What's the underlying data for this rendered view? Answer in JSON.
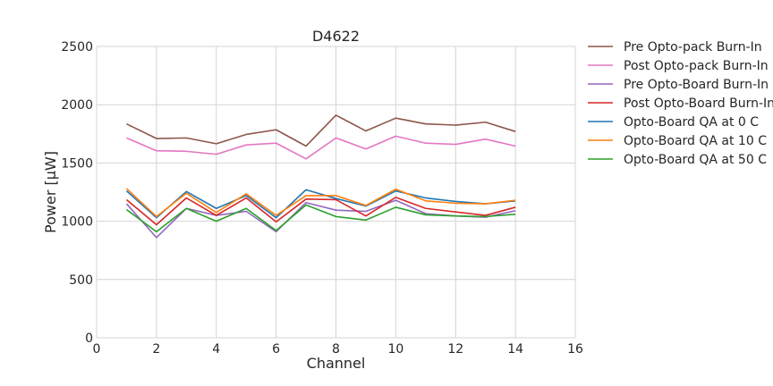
{
  "chart_data": {
    "type": "line",
    "title": "D4622",
    "xlabel": "Channel",
    "ylabel": "Power [μW]",
    "xlim": [
      0,
      16
    ],
    "ylim": [
      0,
      2500
    ],
    "xticks": [
      0,
      2,
      4,
      6,
      8,
      10,
      12,
      14,
      16
    ],
    "yticks": [
      0,
      500,
      1000,
      1500,
      2000,
      2500
    ],
    "grid": true,
    "legend_position": "outside-right",
    "x": [
      1,
      2,
      3,
      4,
      5,
      6,
      7,
      8,
      9,
      10,
      11,
      12,
      13,
      14
    ],
    "series": [
      {
        "name": "Pre Opto-pack Burn-In",
        "color": "#8c564b",
        "values": [
          1835,
          1710,
          1715,
          1665,
          1745,
          1785,
          1645,
          1910,
          1775,
          1885,
          1835,
          1825,
          1850,
          1770
        ]
      },
      {
        "name": "Post Opto-pack Burn-In",
        "color": "#e377c2",
        "values": [
          1715,
          1605,
          1600,
          1575,
          1655,
          1670,
          1535,
          1715,
          1620,
          1730,
          1670,
          1660,
          1705,
          1645
        ]
      },
      {
        "name": "Pre Opto-Board Burn-In",
        "color": "#9467bd",
        "values": [
          1150,
          860,
          1110,
          1050,
          1085,
          910,
          1160,
          1095,
          1085,
          1180,
          1065,
          1045,
          1035,
          1090
        ]
      },
      {
        "name": "Post Opto-Board Burn-In",
        "color": "#d62728",
        "values": [
          1185,
          970,
          1200,
          1050,
          1200,
          995,
          1190,
          1185,
          1045,
          1205,
          1110,
          1080,
          1050,
          1120
        ]
      },
      {
        "name": "Opto-Board QA at 0 C",
        "color": "#1f77b4",
        "values": [
          1260,
          1030,
          1255,
          1110,
          1220,
          1030,
          1270,
          1195,
          1130,
          1260,
          1200,
          1170,
          1150,
          1175
        ]
      },
      {
        "name": "Opto-Board QA at 10 C",
        "color": "#ff7f0e",
        "values": [
          1280,
          1040,
          1240,
          1075,
          1235,
          1050,
          1220,
          1220,
          1135,
          1275,
          1175,
          1155,
          1150,
          1180
        ]
      },
      {
        "name": "Opto-Board QA at 50 C",
        "color": "#2ca02c",
        "values": [
          1100,
          910,
          1110,
          1000,
          1110,
          920,
          1140,
          1040,
          1010,
          1120,
          1055,
          1045,
          1040,
          1060
        ]
      }
    ]
  }
}
